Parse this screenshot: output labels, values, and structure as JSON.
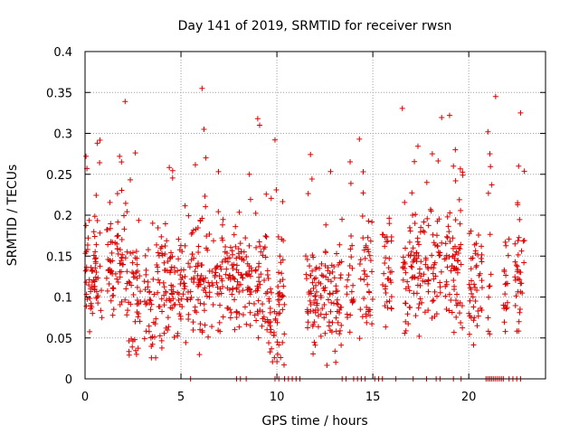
{
  "chart_data": {
    "type": "scatter",
    "title": "Day 141 of 2019, SRMTID for receiver rwsn",
    "xlabel": "GPS time / hours",
    "ylabel": "SRMTID / TECUs",
    "xlim": [
      0,
      24
    ],
    "ylim": [
      0,
      0.4
    ],
    "xticks": [
      0,
      5,
      10,
      15,
      20
    ],
    "xtick_labels": [
      "0",
      "5",
      "10",
      "15",
      "20"
    ],
    "yticks": [
      0,
      0.05,
      0.1,
      0.15,
      0.2,
      0.25,
      0.3,
      0.35,
      0.4
    ],
    "ytick_labels": [
      "0",
      "0.05",
      "0.1",
      "0.15",
      "0.2",
      "0.25",
      "0.3",
      "0.35",
      "0.4"
    ],
    "grid": true,
    "marker": "+",
    "series_color": "#dd0000",
    "data_gaps_hours": [
      [
        0.9,
        1.1
      ],
      [
        2.9,
        3.0
      ],
      [
        4.7,
        4.8
      ],
      [
        6.5,
        6.6
      ],
      [
        7.2,
        7.3
      ],
      [
        8.7,
        8.8
      ],
      [
        10.4,
        11.5
      ],
      [
        13.4,
        13.6
      ],
      [
        14.0,
        14.3
      ],
      [
        15.0,
        15.5
      ],
      [
        16.0,
        16.5
      ],
      [
        18.6,
        18.7
      ],
      [
        19.7,
        20.0
      ],
      [
        20.7,
        21.0
      ],
      [
        21.2,
        21.8
      ],
      [
        22.1,
        22.4
      ],
      [
        22.9,
        24.0
      ]
    ],
    "zero_value_hours": [
      5.5,
      7.9,
      8.1,
      8.4,
      9.9,
      10.1,
      10.4,
      10.6,
      10.8,
      11.0,
      11.2,
      13.4,
      13.6,
      14.0,
      14.2,
      14.4,
      14.6,
      15.1,
      15.3,
      15.5,
      16.2,
      17.1,
      17.8,
      18.3,
      18.5,
      19.2,
      19.6,
      20.9,
      21.0,
      21.1,
      21.2,
      21.3,
      21.4,
      21.5,
      21.6,
      21.7,
      21.8,
      22.1,
      22.3,
      22.5,
      22.7
    ],
    "outliers": [
      {
        "x": 0.05,
        "y": 0.272
      },
      {
        "x": 0.1,
        "y": 0.257
      },
      {
        "x": 1.8,
        "y": 0.272
      },
      {
        "x": 1.9,
        "y": 0.265
      },
      {
        "x": 6.1,
        "y": 0.355
      },
      {
        "x": 6.2,
        "y": 0.305
      },
      {
        "x": 6.3,
        "y": 0.27
      },
      {
        "x": 9.0,
        "y": 0.318
      },
      {
        "x": 9.1,
        "y": 0.31
      },
      {
        "x": 9.9,
        "y": 0.292
      },
      {
        "x": 14.3,
        "y": 0.293
      },
      {
        "x": 14.5,
        "y": 0.253
      },
      {
        "x": 18.1,
        "y": 0.275
      },
      {
        "x": 19.3,
        "y": 0.28
      },
      {
        "x": 19.2,
        "y": 0.26
      },
      {
        "x": 19.0,
        "y": 0.322
      },
      {
        "x": 21.0,
        "y": 0.302
      },
      {
        "x": 21.1,
        "y": 0.275
      },
      {
        "x": 21.2,
        "y": 0.237
      },
      {
        "x": 21.4,
        "y": 0.345
      },
      {
        "x": 22.7,
        "y": 0.325
      },
      {
        "x": 22.6,
        "y": 0.26
      }
    ]
  }
}
